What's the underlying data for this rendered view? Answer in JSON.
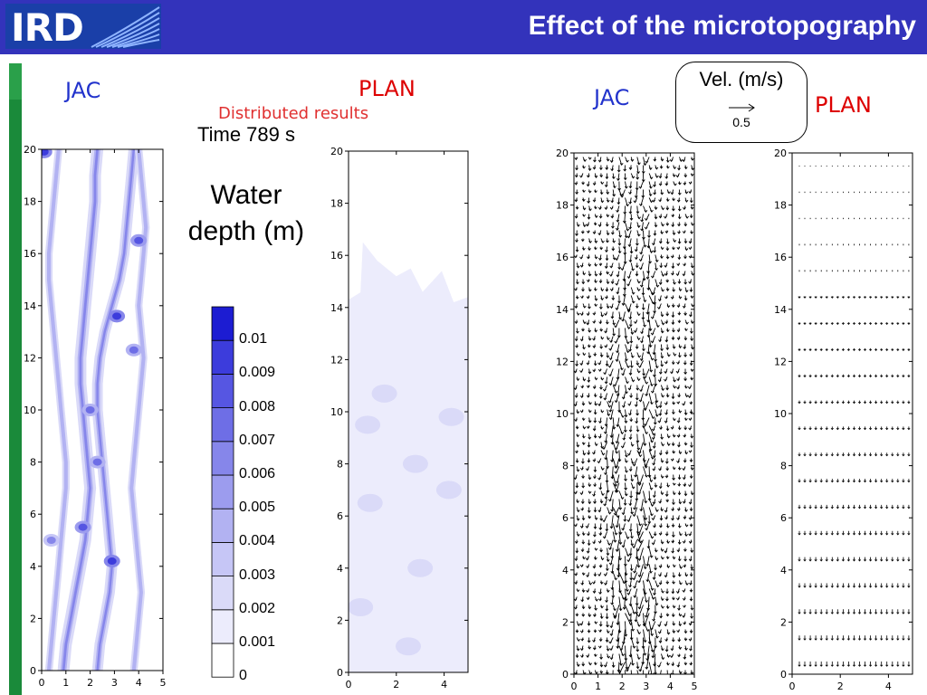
{
  "header": {
    "title": "Effect of the microtopography",
    "logo_text": "IRD"
  },
  "labels": {
    "jac_left": "JAC",
    "plan_left": "PLAN",
    "jac_right": "JAC",
    "plan_right": "PLAN",
    "subtitle": "Distributed results",
    "time": "Time 789 s",
    "water_depth_line1": "Water",
    "water_depth_line2": "depth (m)"
  },
  "velocity_legend": {
    "title": "Vel. (m/s)",
    "value": "0.5"
  },
  "colors": {
    "header_bg": "#3333bb",
    "title_text": "#ffffff",
    "label_blue": "#2233cc",
    "label_red": "#dd0000",
    "subtitle_red": "#e03030"
  },
  "chart_data": [
    {
      "type": "heatmap",
      "panel": "water-depth-jac",
      "x_ticks": [
        "0",
        "1",
        "2",
        "3",
        "4",
        "5"
      ],
      "y_ticks": [
        "0",
        "2",
        "4",
        "6",
        "8",
        "10",
        "12",
        "14",
        "16",
        "18",
        "20"
      ],
      "xlim": [
        0,
        5
      ],
      "ylim": [
        0,
        20
      ],
      "channels": [
        {
          "x": [
            0.9,
            1.0,
            1.2,
            1.4,
            1.6,
            1.8,
            1.9,
            2.0,
            1.9,
            1.8,
            1.7,
            1.6,
            1.6,
            1.7,
            1.8,
            1.9,
            2.0,
            2.1,
            2.2,
            2.2,
            2.3
          ],
          "y": [
            0,
            1,
            2,
            3,
            4,
            5,
            6,
            7,
            8,
            9,
            10,
            11,
            12,
            13,
            14,
            15,
            16,
            17,
            18,
            19,
            20
          ],
          "w": 0.22
        },
        {
          "x": [
            2.3,
            2.4,
            2.6,
            2.8,
            2.9,
            2.8,
            2.7,
            2.6,
            2.5,
            2.4,
            2.3,
            2.3,
            2.4,
            2.6,
            2.9,
            3.2,
            3.4,
            3.5,
            3.6,
            3.7,
            3.8
          ],
          "y": [
            0,
            1,
            2,
            3,
            4,
            5,
            6,
            7,
            8,
            9,
            10,
            11,
            12,
            13,
            14,
            15,
            16,
            17,
            18,
            19,
            20
          ],
          "w": 0.2
        },
        {
          "x": [
            0.3,
            0.4,
            0.5,
            0.6,
            0.7,
            0.8,
            0.9,
            1.0,
            1.0,
            0.9,
            0.8,
            0.7,
            0.6,
            0.5,
            0.4,
            0.3,
            0.3,
            0.4,
            0.5,
            0.6,
            0.7
          ],
          "y": [
            0,
            1,
            2,
            3,
            4,
            5,
            6,
            7,
            8,
            9,
            10,
            11,
            12,
            13,
            14,
            15,
            16,
            17,
            18,
            19,
            20
          ],
          "w": 0.14
        },
        {
          "x": [
            3.8,
            3.9,
            4.0,
            4.1,
            4.0,
            3.9,
            3.8,
            3.7,
            3.8,
            3.9,
            4.0,
            4.1,
            4.2,
            4.1,
            4.0,
            4.1,
            4.2,
            4.3,
            4.2,
            4.1,
            4.0
          ],
          "y": [
            0,
            1,
            2,
            3,
            4,
            5,
            6,
            7,
            8,
            9,
            10,
            11,
            12,
            13,
            14,
            15,
            16,
            17,
            18,
            19,
            20
          ],
          "w": 0.14
        }
      ],
      "spots": [
        {
          "x": 1.7,
          "y": 5.5,
          "v": 0.008
        },
        {
          "x": 2.9,
          "y": 4.2,
          "v": 0.009
        },
        {
          "x": 2.3,
          "y": 8.0,
          "v": 0.007
        },
        {
          "x": 2.0,
          "y": 10.0,
          "v": 0.007
        },
        {
          "x": 4.0,
          "y": 16.5,
          "v": 0.008
        },
        {
          "x": 3.1,
          "y": 13.6,
          "v": 0.009
        },
        {
          "x": 3.8,
          "y": 12.3,
          "v": 0.007
        },
        {
          "x": 0.1,
          "y": 19.9,
          "v": 0.009
        },
        {
          "x": 0.4,
          "y": 5.0,
          "v": 0.006
        }
      ]
    },
    {
      "type": "heatmap",
      "panel": "water-depth-plan",
      "x_ticks": [
        "0",
        "2",
        "4"
      ],
      "y_ticks": [
        "0",
        "2",
        "4",
        "6",
        "8",
        "10",
        "12",
        "14",
        "16",
        "18",
        "20"
      ],
      "xlim": [
        0,
        5
      ],
      "ylim": [
        0,
        20
      ],
      "wet_front_y": 14.3,
      "patches": [
        {
          "x": 0.8,
          "y": 9.5,
          "v": 0.002
        },
        {
          "x": 2.8,
          "y": 8.0,
          "v": 0.002
        },
        {
          "x": 0.9,
          "y": 6.5,
          "v": 0.002
        },
        {
          "x": 3.0,
          "y": 4.0,
          "v": 0.002
        },
        {
          "x": 4.3,
          "y": 9.8,
          "v": 0.002
        },
        {
          "x": 4.2,
          "y": 7.0,
          "v": 0.002
        },
        {
          "x": 1.5,
          "y": 10.7,
          "v": 0.002
        },
        {
          "x": 2.5,
          "y": 1.0,
          "v": 0.002
        },
        {
          "x": 0.5,
          "y": 2.5,
          "v": 0.002
        }
      ]
    },
    {
      "type": "scatter",
      "panel": "velocity-jac",
      "x_ticks": [
        "0",
        "1",
        "2",
        "3",
        "4",
        "5"
      ],
      "y_ticks": [
        "0",
        "2",
        "4",
        "6",
        "8",
        "10",
        "12",
        "14",
        "16",
        "18",
        "20"
      ],
      "xlim": [
        0,
        5
      ],
      "ylim": [
        0,
        20
      ],
      "reference_vector_ms": 0.5
    },
    {
      "type": "scatter",
      "panel": "velocity-plan",
      "x_ticks": [
        "0",
        "2",
        "4"
      ],
      "y_ticks": [
        "0",
        "2",
        "4",
        "6",
        "8",
        "10",
        "12",
        "14",
        "16",
        "18",
        "20"
      ],
      "xlim": [
        0,
        5
      ],
      "ylim": [
        0,
        20
      ]
    },
    {
      "type": "heatmap",
      "panel": "colorbar",
      "levels": [
        "0",
        "0.001",
        "0.002",
        "0.003",
        "0.004",
        "0.005",
        "0.006",
        "0.007",
        "0.008",
        "0.009",
        "0.01"
      ],
      "colors": [
        "#ffffff",
        "#ececfc",
        "#dadaf8",
        "#c6c6f6",
        "#b2b2f2",
        "#9c9cee",
        "#8686ea",
        "#6e6ee6",
        "#5656e2",
        "#3c3cdc",
        "#1c1cd2"
      ]
    }
  ]
}
